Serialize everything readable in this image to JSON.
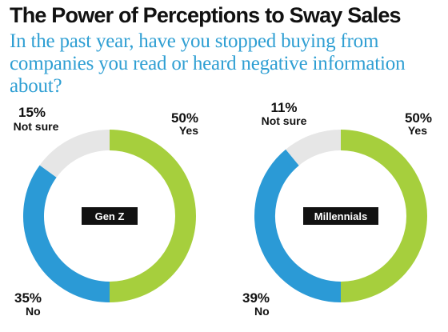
{
  "title": "The Power of Perceptions to Sway Sales",
  "subtitle": "In the past year, have you stopped buying from companies you read or heard negative information about?",
  "colors": {
    "subtitle": "#2f9fd3",
    "yes": "#a6cf3d",
    "no": "#2b9ad6",
    "not_sure": "#e6e6e6",
    "badge": "#111111"
  },
  "chart_data": [
    {
      "type": "pie",
      "center_label": "Gen Z",
      "categories": [
        "Yes",
        "No",
        "Not sure"
      ],
      "values": [
        50,
        35,
        15
      ],
      "value_labels": [
        "50%",
        "35%",
        "15%"
      ]
    },
    {
      "type": "pie",
      "center_label": "Millennials",
      "categories": [
        "Yes",
        "No",
        "Not sure"
      ],
      "values": [
        50,
        39,
        11
      ],
      "value_labels": [
        "50%",
        "39%",
        "11%"
      ]
    }
  ]
}
